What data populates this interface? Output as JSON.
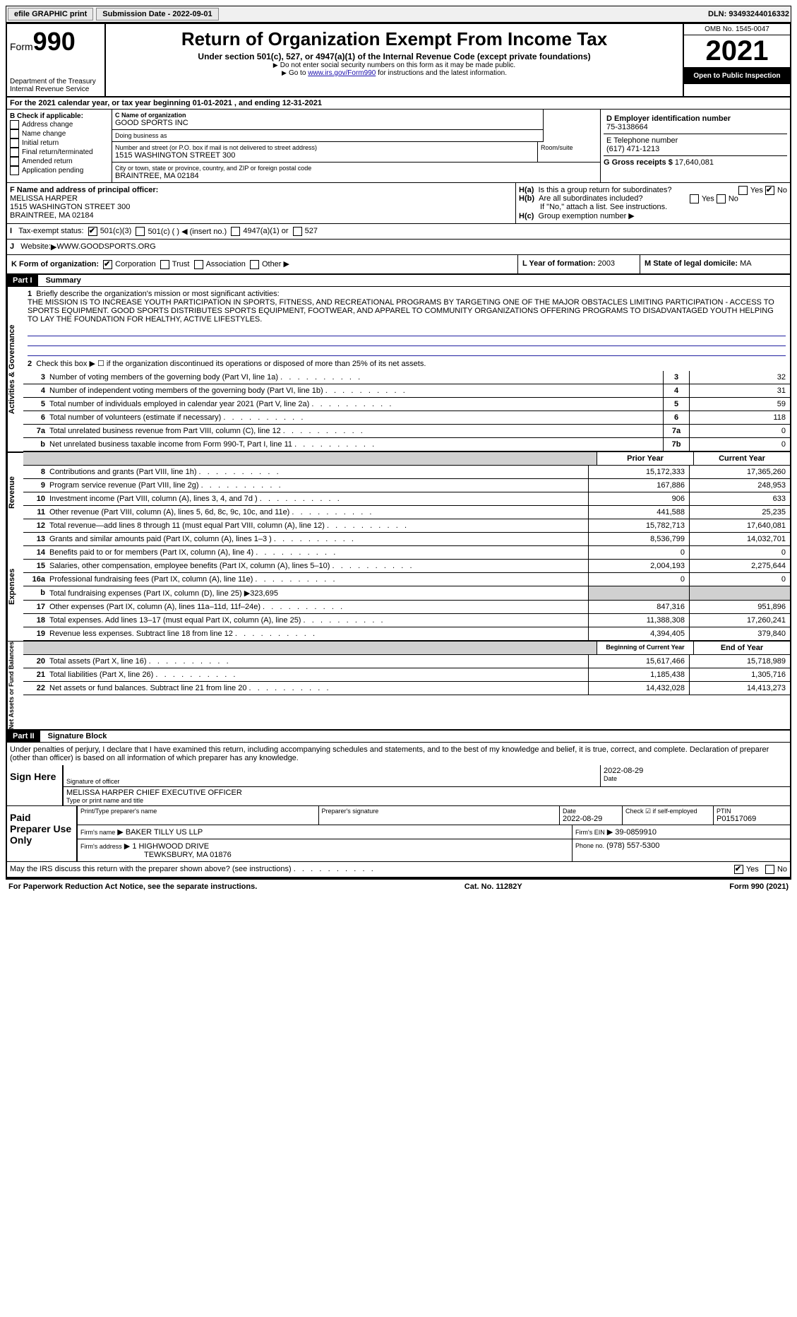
{
  "top": {
    "efile": "efile GRAPHIC print",
    "submission": "Submission Date - 2022-09-01",
    "dln_label": "DLN:",
    "dln": "93493244016332"
  },
  "header": {
    "form_label": "Form",
    "form_no": "990",
    "title": "Return of Organization Exempt From Income Tax",
    "sub": "Under section 501(c), 527, or 4947(a)(1) of the Internal Revenue Code (except private foundations)",
    "note1": "Do not enter social security numbers on this form as it may be made public.",
    "note2_pre": "Go to ",
    "note2_link": "www.irs.gov/Form990",
    "note2_post": " for instructions and the latest information.",
    "dept": "Department of the Treasury\nInternal Revenue Service",
    "omb": "OMB No. 1545-0047",
    "year": "2021",
    "open": "Open to Public Inspection"
  },
  "a": "For the 2021 calendar year, or tax year beginning 01-01-2021    , and ending 12-31-2021",
  "b": {
    "label": "B Check if applicable:",
    "items": [
      "Address change",
      "Name change",
      "Initial return",
      "Final return/terminated",
      "Amended return",
      "Application pending"
    ]
  },
  "c": {
    "name_label": "C Name of organization",
    "name": "GOOD SPORTS INC",
    "dba_label": "Doing business as",
    "dba": "",
    "street_label": "Number and street (or P.O. box if mail is not delivered to street address)",
    "street": "1515 WASHINGTON STREET 300",
    "room_label": "Room/suite",
    "city_label": "City or town, state or province, country, and ZIP or foreign postal code",
    "city": "BRAINTREE, MA   02184"
  },
  "d": {
    "label": "D Employer identification number",
    "val": "75-3138664"
  },
  "e": {
    "label": "E Telephone number",
    "val": "(617) 471-1213"
  },
  "g": {
    "label": "G Gross receipts $",
    "val": "17,640,081"
  },
  "f": {
    "label": "F  Name and address of principal officer:",
    "name": "MELISSA HARPER",
    "street": "1515 WASHINGTON STREET 300",
    "city": "BRAINTREE, MA   02184"
  },
  "h": {
    "a": "Is this a group return for subordinates?",
    "b": "Are all subordinates included?",
    "note": "If \"No,\" attach a list. See instructions.",
    "c": "Group exemption number"
  },
  "i": {
    "label": "Tax-exempt status:",
    "opts": [
      "501(c)(3)",
      "501(c) (  ) ◀ (insert no.)",
      "4947(a)(1) or",
      "527"
    ]
  },
  "j": {
    "label": "Website:",
    "val": "WWW.GOODSPORTS.ORG"
  },
  "k": {
    "label": "K Form of organization:",
    "opts": [
      "Corporation",
      "Trust",
      "Association",
      "Other"
    ]
  },
  "l": {
    "label": "L Year of formation:",
    "val": "2003"
  },
  "m": {
    "label": "M State of legal domicile:",
    "val": "MA"
  },
  "part1": {
    "header": "Part I",
    "title": "Summary",
    "sections": {
      "gov": "Activities & Governance",
      "rev": "Revenue",
      "exp": "Expenses",
      "net": "Net Assets or Fund Balances"
    },
    "line1_label": "Briefly describe the organization's mission or most significant activities:",
    "mission": "THE MISSION IS TO INCREASE YOUTH PARTICIPATION IN SPORTS, FITNESS, AND RECREATIONAL PROGRAMS BY TARGETING ONE OF THE MAJOR OBSTACLES LIMITING PARTICIPATION - ACCESS TO SPORTS EQUIPMENT. GOOD SPORTS DISTRIBUTES SPORTS EQUIPMENT, FOOTWEAR, AND APPAREL TO COMMUNITY ORGANIZATIONS OFFERING PROGRAMS TO DISADVANTAGED YOUTH HELPING TO LAY THE FOUNDATION FOR HEALTHY, ACTIVE LIFESTYLES.",
    "line2": "Check this box ▶ ☐  if the organization discontinued its operations or disposed of more than 25% of its net assets.",
    "lines": [
      {
        "n": "3",
        "t": "Number of voting members of the governing body (Part VI, line 1a)",
        "box": "3",
        "v": "32"
      },
      {
        "n": "4",
        "t": "Number of independent voting members of the governing body (Part VI, line 1b)",
        "box": "4",
        "v": "31"
      },
      {
        "n": "5",
        "t": "Total number of individuals employed in calendar year 2021 (Part V, line 2a)",
        "box": "5",
        "v": "59"
      },
      {
        "n": "6",
        "t": "Total number of volunteers (estimate if necessary)",
        "box": "6",
        "v": "118"
      },
      {
        "n": "7a",
        "t": "Total unrelated business revenue from Part VIII, column (C), line 12",
        "box": "7a",
        "v": "0"
      },
      {
        "n": "b",
        "t": "Net unrelated business taxable income from Form 990-T, Part I, line 11",
        "box": "7b",
        "v": "0"
      }
    ],
    "col_prior": "Prior Year",
    "col_current": "Current Year",
    "rev_lines": [
      {
        "n": "8",
        "t": "Contributions and grants (Part VIII, line 1h)",
        "p": "15,172,333",
        "c": "17,365,260"
      },
      {
        "n": "9",
        "t": "Program service revenue (Part VIII, line 2g)",
        "p": "167,886",
        "c": "248,953"
      },
      {
        "n": "10",
        "t": "Investment income (Part VIII, column (A), lines 3, 4, and 7d )",
        "p": "906",
        "c": "633"
      },
      {
        "n": "11",
        "t": "Other revenue (Part VIII, column (A), lines 5, 6d, 8c, 9c, 10c, and 11e)",
        "p": "441,588",
        "c": "25,235"
      },
      {
        "n": "12",
        "t": "Total revenue—add lines 8 through 11 (must equal Part VIII, column (A), line 12)",
        "p": "15,782,713",
        "c": "17,640,081"
      }
    ],
    "exp_lines": [
      {
        "n": "13",
        "t": "Grants and similar amounts paid (Part IX, column (A), lines 1–3 )",
        "p": "8,536,799",
        "c": "14,032,701"
      },
      {
        "n": "14",
        "t": "Benefits paid to or for members (Part IX, column (A), line 4)",
        "p": "0",
        "c": "0"
      },
      {
        "n": "15",
        "t": "Salaries, other compensation, employee benefits (Part IX, column (A), lines 5–10)",
        "p": "2,004,193",
        "c": "2,275,644"
      },
      {
        "n": "16a",
        "t": "Professional fundraising fees (Part IX, column (A), line 11e)",
        "p": "0",
        "c": "0"
      },
      {
        "n": "b",
        "t": "Total fundraising expenses (Part IX, column (D), line 25) ▶323,695",
        "p": "",
        "c": "",
        "grey": true
      },
      {
        "n": "17",
        "t": "Other expenses (Part IX, column (A), lines 11a–11d, 11f–24e)",
        "p": "847,316",
        "c": "951,896"
      },
      {
        "n": "18",
        "t": "Total expenses. Add lines 13–17 (must equal Part IX, column (A), line 25)",
        "p": "11,388,308",
        "c": "17,260,241"
      },
      {
        "n": "19",
        "t": "Revenue less expenses. Subtract line 18 from line 12",
        "p": "4,394,405",
        "c": "379,840"
      }
    ],
    "col_begin": "Beginning of Current Year",
    "col_end": "End of Year",
    "net_lines": [
      {
        "n": "20",
        "t": "Total assets (Part X, line 16)",
        "p": "15,617,466",
        "c": "15,718,989"
      },
      {
        "n": "21",
        "t": "Total liabilities (Part X, line 26)",
        "p": "1,185,438",
        "c": "1,305,716"
      },
      {
        "n": "22",
        "t": "Net assets or fund balances. Subtract line 21 from line 20",
        "p": "14,432,028",
        "c": "14,413,273"
      }
    ]
  },
  "part2": {
    "header": "Part II",
    "title": "Signature Block",
    "perjury": "Under penalties of perjury, I declare that I have examined this return, including accompanying schedules and statements, and to the best of my knowledge and belief, it is true, correct, and complete. Declaration of preparer (other than officer) is based on all information of which preparer has any knowledge.",
    "sign_here": "Sign Here",
    "sig_officer": "Signature of officer",
    "sig_date": "2022-08-29",
    "date_label": "Date",
    "officer_name": "MELISSA HARPER  CHIEF EXECUTIVE OFFICER",
    "type_label": "Type or print name and title",
    "paid": "Paid Preparer Use Only",
    "prep_name_label": "Print/Type preparer's name",
    "prep_sig_label": "Preparer's signature",
    "prep_date_label": "Date",
    "prep_date": "2022-08-29",
    "check_self": "Check ☑ if self-employed",
    "ptin_label": "PTIN",
    "ptin": "P01517069",
    "firm_name_label": "Firm's name",
    "firm_name": "BAKER TILLY US LLP",
    "firm_ein_label": "Firm's EIN",
    "firm_ein": "39-0859910",
    "firm_addr_label": "Firm's address",
    "firm_addr1": "1 HIGHWOOD DRIVE",
    "firm_addr2": "TEWKSBURY, MA   01876",
    "phone_label": "Phone no.",
    "phone": "(978) 557-5300",
    "may_irs": "May the IRS discuss this return with the preparer shown above? (see instructions)",
    "yes": "Yes",
    "no": "No"
  },
  "footer": {
    "left": "For Paperwork Reduction Act Notice, see the separate instructions.",
    "mid": "Cat. No. 11282Y",
    "right": "Form 990 (2021)"
  }
}
